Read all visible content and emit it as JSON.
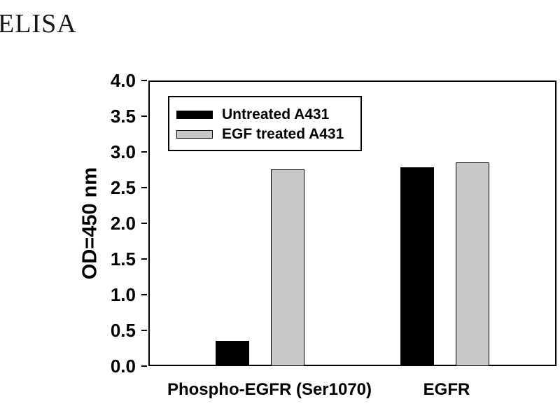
{
  "title": {
    "text": "ELISA"
  },
  "chart_data": {
    "type": "bar",
    "title": "ELISA",
    "categories": [
      "Phospho-EGFR (Ser1070)",
      "EGFR"
    ],
    "series": [
      {
        "name": "Untreated A431",
        "color": "#000000",
        "values": [
          0.35,
          2.78
        ]
      },
      {
        "name": "EGF treated A431",
        "color": "#c8c8c8",
        "values": [
          2.75,
          2.85
        ]
      }
    ],
    "xlabel": "",
    "ylabel": "OD=450 nm",
    "ylim": [
      0.0,
      4.0
    ],
    "ytick_labels": [
      "0.0",
      "0.5",
      "1.0",
      "1.5",
      "2.0",
      "2.5",
      "3.0",
      "3.5",
      "4.0"
    ],
    "grid": false,
    "legend_position": "upper-left-inside",
    "bar_outline_color": "#000000",
    "axis_color": "#000000",
    "background_color": "#ffffff"
  }
}
